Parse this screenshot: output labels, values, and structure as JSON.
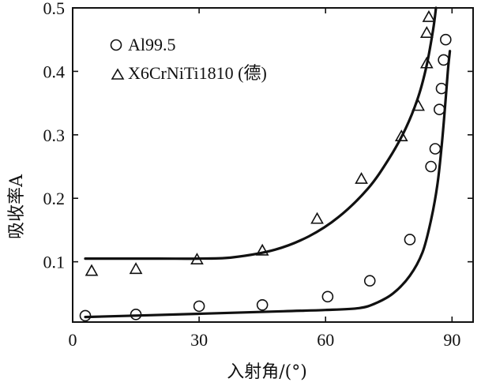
{
  "chart_data": {
    "type": "scatter",
    "xlabel": "入射角/(°)",
    "ylabel": "吸收率A",
    "xlim": [
      0,
      95
    ],
    "ylim": [
      0.005,
      0.5
    ],
    "xticks": [
      0,
      30,
      60,
      90
    ],
    "xtick_labels": [
      "0",
      "30",
      "60",
      "90"
    ],
    "yticks": [
      0.1,
      0.2,
      0.3,
      0.4,
      0.5
    ],
    "ytick_labels": [
      "0.1",
      "0.2",
      "0.3",
      "0.4",
      "0.5"
    ],
    "legend_position": "top-left",
    "series": [
      {
        "name": "Al99.5",
        "marker": "circle",
        "points": [
          {
            "x": 3,
            "y": 0.015
          },
          {
            "x": 15,
            "y": 0.017
          },
          {
            "x": 30,
            "y": 0.03
          },
          {
            "x": 45,
            "y": 0.032
          },
          {
            "x": 60.5,
            "y": 0.045
          },
          {
            "x": 70.5,
            "y": 0.07
          },
          {
            "x": 80,
            "y": 0.135
          },
          {
            "x": 85,
            "y": 0.25
          },
          {
            "x": 86,
            "y": 0.278
          },
          {
            "x": 87,
            "y": 0.34
          },
          {
            "x": 87.5,
            "y": 0.373
          },
          {
            "x": 88,
            "y": 0.418
          },
          {
            "x": 88.5,
            "y": 0.45
          }
        ],
        "curve": [
          {
            "x": 3,
            "y": 0.013
          },
          {
            "x": 30,
            "y": 0.018
          },
          {
            "x": 50,
            "y": 0.022
          },
          {
            "x": 60,
            "y": 0.024
          },
          {
            "x": 68,
            "y": 0.027
          },
          {
            "x": 72,
            "y": 0.035
          },
          {
            "x": 76,
            "y": 0.05
          },
          {
            "x": 80,
            "y": 0.078
          },
          {
            "x": 83,
            "y": 0.115
          },
          {
            "x": 85,
            "y": 0.165
          },
          {
            "x": 86.5,
            "y": 0.22
          },
          {
            "x": 87.5,
            "y": 0.28
          },
          {
            "x": 88.3,
            "y": 0.34
          },
          {
            "x": 89,
            "y": 0.4
          },
          {
            "x": 89.5,
            "y": 0.432
          }
        ]
      },
      {
        "name": "X6CrNiTi1810 (德)",
        "marker": "triangle",
        "points": [
          {
            "x": 4.5,
            "y": 0.085
          },
          {
            "x": 15,
            "y": 0.088
          },
          {
            "x": 29.5,
            "y": 0.103
          },
          {
            "x": 45,
            "y": 0.117
          },
          {
            "x": 58,
            "y": 0.167
          },
          {
            "x": 68.5,
            "y": 0.23
          },
          {
            "x": 78,
            "y": 0.297
          },
          {
            "x": 82,
            "y": 0.345
          },
          {
            "x": 84,
            "y": 0.412
          },
          {
            "x": 84,
            "y": 0.46
          },
          {
            "x": 84.5,
            "y": 0.485
          }
        ],
        "curve": [
          {
            "x": 3,
            "y": 0.105
          },
          {
            "x": 20,
            "y": 0.105
          },
          {
            "x": 30,
            "y": 0.105
          },
          {
            "x": 38,
            "y": 0.107
          },
          {
            "x": 48,
            "y": 0.119
          },
          {
            "x": 56,
            "y": 0.14
          },
          {
            "x": 63,
            "y": 0.17
          },
          {
            "x": 70,
            "y": 0.215
          },
          {
            "x": 75,
            "y": 0.262
          },
          {
            "x": 79,
            "y": 0.31
          },
          {
            "x": 82,
            "y": 0.36
          },
          {
            "x": 84,
            "y": 0.41
          },
          {
            "x": 85.5,
            "y": 0.465
          },
          {
            "x": 86.2,
            "y": 0.5
          }
        ]
      }
    ]
  }
}
